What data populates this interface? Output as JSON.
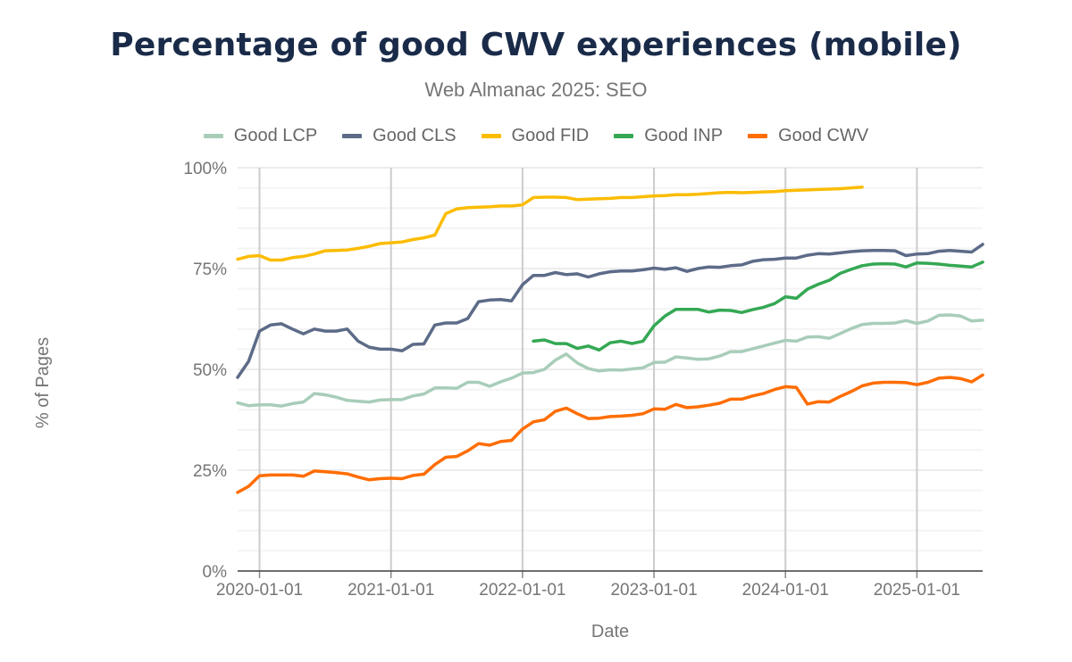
{
  "chart_data": {
    "type": "line",
    "title": "Percentage of good CWV experiences (mobile)",
    "subtitle": "Web Almanac 2025: SEO",
    "xlabel": "Date",
    "ylabel": "% of Pages",
    "ylim": [
      0,
      100
    ],
    "xlim": [
      "2019-11-01",
      "2025-07-01"
    ],
    "y_ticks": [
      "0%",
      "25%",
      "50%",
      "75%",
      "100%"
    ],
    "x_ticks": [
      "2020-01-01",
      "2021-01-01",
      "2022-01-01",
      "2023-01-01",
      "2024-01-01",
      "2025-01-01"
    ],
    "grid": true,
    "legend_position": "top",
    "x_start": "2019-11",
    "x_step": "monthly",
    "series": [
      {
        "name": "Good LCP",
        "color": "#a8cdb9",
        "start": "2019-11",
        "values": [
          41.7,
          41.0,
          41.2,
          41.2,
          40.9,
          41.5,
          41.9,
          44.0,
          43.7,
          43.1,
          42.3,
          42.1,
          41.9,
          42.4,
          42.5,
          42.5,
          43.4,
          43.9,
          45.4,
          45.4,
          45.3,
          46.8,
          46.8,
          45.8,
          46.9,
          47.8,
          49.1,
          49.2,
          50.0,
          52.3,
          53.8,
          51.6,
          50.2,
          49.6,
          49.9,
          49.8,
          50.1,
          50.4,
          51.7,
          51.8,
          53.1,
          52.8,
          52.5,
          52.6,
          53.3,
          54.4,
          54.4,
          55.1,
          55.8,
          56.5,
          57.2,
          57.0,
          58.0,
          58.1,
          57.7,
          58.9,
          60.1,
          61.1,
          61.4,
          61.4,
          61.5,
          62.1,
          61.4,
          62.0,
          63.4,
          63.5,
          63.2,
          62.0,
          62.2
        ]
      },
      {
        "name": "Good CLS",
        "color": "#5c6b88",
        "start": "2019-11",
        "values": [
          48.0,
          52.0,
          59.5,
          61.0,
          61.3,
          60.0,
          58.8,
          60.0,
          59.5,
          59.5,
          60.0,
          57.0,
          55.5,
          55.0,
          55.0,
          54.6,
          56.2,
          56.3,
          61.0,
          61.5,
          61.5,
          62.6,
          66.8,
          67.2,
          67.3,
          67.0,
          71.0,
          73.3,
          73.3,
          74.0,
          73.5,
          73.7,
          72.9,
          73.7,
          74.2,
          74.4,
          74.4,
          74.7,
          75.1,
          74.8,
          75.2,
          74.3,
          75.0,
          75.4,
          75.3,
          75.7,
          75.9,
          76.8,
          77.2,
          77.3,
          77.6,
          77.6,
          78.3,
          78.7,
          78.6,
          78.9,
          79.2,
          79.4,
          79.5,
          79.5,
          79.4,
          78.2,
          78.6,
          78.7,
          79.3,
          79.5,
          79.3,
          79.1,
          81.0
        ]
      },
      {
        "name": "Good FID",
        "color": "#fbbc04",
        "start": "2019-11",
        "values": [
          77.3,
          78.0,
          78.2,
          77.1,
          77.1,
          77.7,
          78.0,
          78.6,
          79.4,
          79.5,
          79.6,
          80.0,
          80.5,
          81.2,
          81.4,
          81.6,
          82.2,
          82.6,
          83.3,
          88.6,
          89.8,
          90.1,
          90.2,
          90.3,
          90.5,
          90.5,
          90.8,
          92.6,
          92.7,
          92.7,
          92.6,
          92.1,
          92.2,
          92.3,
          92.4,
          92.6,
          92.6,
          92.8,
          93.0,
          93.1,
          93.3,
          93.3,
          93.4,
          93.6,
          93.8,
          93.9,
          93.8,
          93.9,
          94.0,
          94.1,
          94.3,
          94.4,
          94.5,
          94.6,
          94.7,
          94.8,
          95.0,
          95.2
        ]
      },
      {
        "name": "Good INP",
        "color": "#34a853",
        "start": "2022-02",
        "values": [
          57.0,
          57.3,
          56.4,
          56.4,
          55.2,
          55.8,
          54.8,
          56.6,
          57.0,
          56.4,
          57.0,
          60.8,
          63.2,
          64.9,
          64.9,
          64.9,
          64.2,
          64.7,
          64.6,
          64.1,
          64.8,
          65.4,
          66.3,
          68.0,
          67.6,
          69.9,
          71.1,
          72.1,
          73.8,
          74.8,
          75.7,
          76.1,
          76.2,
          76.1,
          75.4,
          76.4,
          76.3,
          76.1,
          75.8,
          75.6,
          75.4,
          76.6
        ]
      },
      {
        "name": "Good CWV",
        "color": "#ff6d00",
        "start": "2019-11",
        "values": [
          19.5,
          21.0,
          23.6,
          23.8,
          23.8,
          23.8,
          23.5,
          24.8,
          24.6,
          24.4,
          24.1,
          23.3,
          22.6,
          22.9,
          23.0,
          22.9,
          23.7,
          24.0,
          26.4,
          28.2,
          28.4,
          29.8,
          31.6,
          31.2,
          32.1,
          32.4,
          35.2,
          37.0,
          37.5,
          39.6,
          40.4,
          39.0,
          37.8,
          37.9,
          38.3,
          38.4,
          38.6,
          39.0,
          40.2,
          40.1,
          41.3,
          40.5,
          40.7,
          41.1,
          41.6,
          42.6,
          42.6,
          43.4,
          44.0,
          45.0,
          45.7,
          45.5,
          41.4,
          42.0,
          41.9,
          43.3,
          44.5,
          45.9,
          46.6,
          46.8,
          46.8,
          46.7,
          46.2,
          46.8,
          47.8,
          48.0,
          47.7,
          46.9,
          48.6
        ]
      }
    ]
  }
}
